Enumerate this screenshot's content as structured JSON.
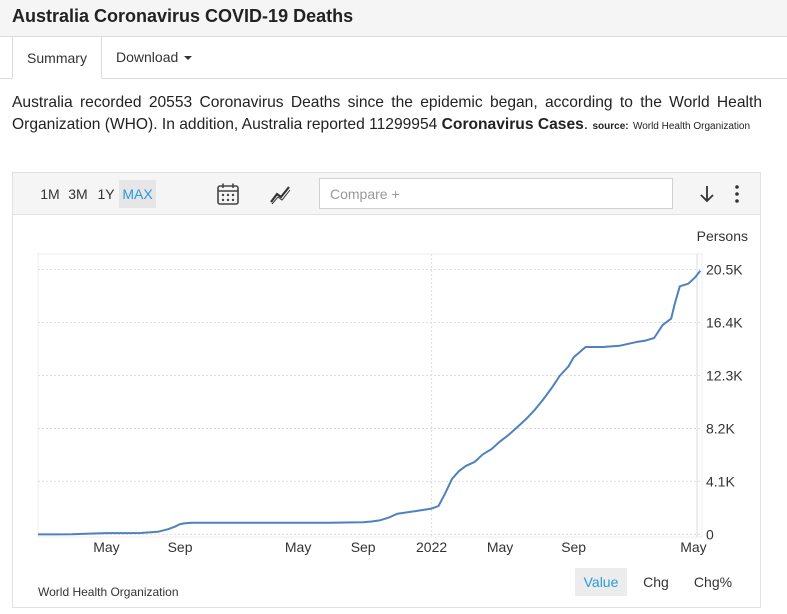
{
  "page": {
    "title": "Australia Coronavirus COVID-19 Deaths"
  },
  "tabs": {
    "summary": "Summary",
    "download": "Download"
  },
  "description": {
    "part1": "Australia recorded 20553 Coronavirus Deaths since the epidemic began, according to the World Health Organization (WHO). In addition, Australia reported 11299954 ",
    "bold": "Coronavirus Cases",
    "part2": ". ",
    "source_label": "source:",
    "source_name": "World Health Organization"
  },
  "toolbar": {
    "ranges": [
      "1M",
      "3M",
      "1Y",
      "MAX"
    ],
    "active_range": "MAX",
    "compare_placeholder": "Compare +"
  },
  "chart_data": {
    "type": "line",
    "unit_label": "Persons",
    "y_tick_labels": [
      "20.5K",
      "16.4K",
      "12.3K",
      "8.2K",
      "4.1K",
      "0"
    ],
    "y_ticks": [
      20500,
      16400,
      12300,
      8200,
      4100,
      0
    ],
    "ylim": [
      -200,
      21700
    ],
    "xlim": [
      0,
      38.8
    ],
    "x_tick_labels": [
      "May",
      "Sep",
      "May",
      "Sep",
      "2022",
      "May",
      "Sep",
      "May"
    ],
    "x_ticks": [
      4,
      8.3,
      15.2,
      19,
      23,
      27,
      31.3,
      38.3
    ],
    "x_gridlines": [
      23
    ],
    "series": [
      {
        "name": "Deaths",
        "color": "#4f81bd",
        "x": [
          0,
          1,
          2,
          3,
          4,
          5,
          6,
          7,
          7.6,
          8,
          8.3,
          8.6,
          9,
          10,
          11,
          12,
          13,
          14,
          15,
          16,
          17,
          18,
          19,
          19.5,
          20,
          20.5,
          21,
          22,
          23,
          23.4,
          23.8,
          24.2,
          24.6,
          25,
          25.5,
          26,
          26.5,
          27,
          27.5,
          28,
          28.5,
          29,
          29.5,
          30,
          30.5,
          31,
          31.3,
          32,
          33,
          34,
          35,
          35.5,
          36,
          36.5,
          37,
          37.2,
          37.5,
          38,
          38.4,
          38.7
        ],
        "y": [
          0,
          0,
          20,
          60,
          100,
          100,
          110,
          200,
          400,
          600,
          800,
          860,
          900,
          910,
          910,
          910,
          910,
          910,
          910,
          910,
          910,
          920,
          940,
          1000,
          1100,
          1300,
          1600,
          1800,
          2000,
          2200,
          3200,
          4300,
          4900,
          5300,
          5600,
          6200,
          6600,
          7200,
          7700,
          8300,
          8900,
          9600,
          10400,
          11300,
          12300,
          13000,
          13700,
          14500,
          14500,
          14600,
          14900,
          15000,
          15200,
          16200,
          16700,
          17800,
          19200,
          19400,
          19900,
          20400
        ]
      }
    ],
    "source": "World Health Organization"
  },
  "view_modes": [
    "Value",
    "Chg",
    "Chg%"
  ],
  "active_view": "Value"
}
